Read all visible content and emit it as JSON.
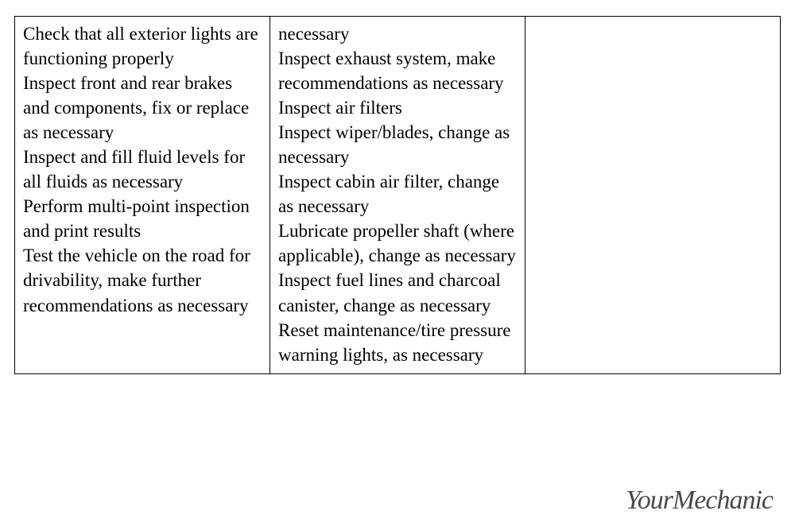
{
  "table": {
    "border_color": "#000000",
    "background_color": "#ffffff",
    "text_color": "#000000",
    "font_size": 23,
    "columns": [
      {
        "items": [
          "Check that all exterior lights are functioning properly",
          "Inspect front and rear brakes and components, fix or replace as necessary",
          "Inspect and fill fluid levels for all fluids as necessary",
          "Perform multi-point inspection and print results",
          "Test the vehicle on the road for drivability, make further recommendations as necessary"
        ]
      },
      {
        "items": [
          "necessary",
          "Inspect exhaust system, make recommendations as necessary",
          "Inspect air filters",
          "Inspect wiper/blades, change as necessary",
          "Inspect cabin air filter, change as necessary",
          "Lubricate propeller shaft (where applicable), change as necessary",
          "Inspect fuel lines and charcoal canister, change as necessary",
          "Reset maintenance/tire pressure warning lights, as necessary"
        ]
      },
      {
        "items": []
      }
    ]
  },
  "logo": {
    "text": "YourMechanic",
    "color": "#4a4a4a",
    "font_size": 34
  }
}
